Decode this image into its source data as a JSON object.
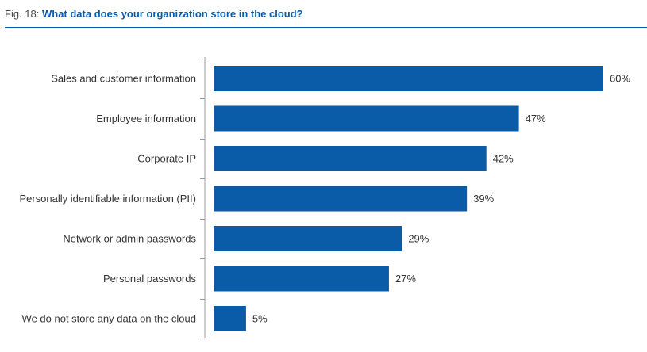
{
  "figure": {
    "prefix": "Fig. 18:",
    "title": "What data does your organization store in the cloud?"
  },
  "colors": {
    "bar": "#0a5ba8",
    "title": "#0a5ba8",
    "axis": "#999999",
    "text": "#333333"
  },
  "chart_data": {
    "type": "bar",
    "orientation": "horizontal",
    "categories": [
      "Sales and customer information",
      "Employee information",
      "Corporate IP",
      "Personally identifiable information (PII)",
      "Network or admin passwords",
      "Personal passwords",
      "We do not store any data on the cloud"
    ],
    "values": [
      60,
      47,
      42,
      39,
      29,
      27,
      5
    ],
    "value_labels": [
      "60%",
      "47%",
      "42%",
      "39%",
      "29%",
      "27%",
      "5%"
    ],
    "unit": "%",
    "xlim": [
      0,
      60
    ],
    "grid": false,
    "legend": "none"
  }
}
